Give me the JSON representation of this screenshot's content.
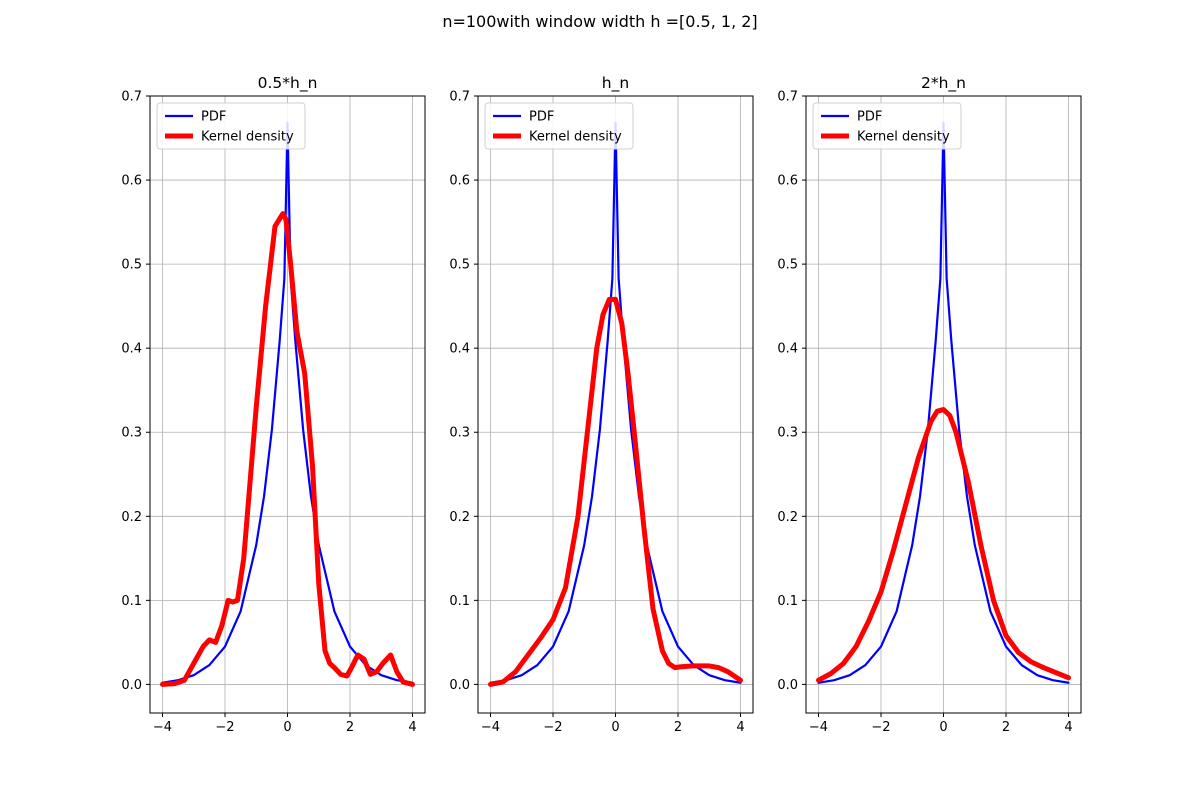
{
  "figure": {
    "suptitle": "n=100with window width h =[0.5, 1, 2]"
  },
  "colors": {
    "pdf": "#0000ff",
    "kde": "#ff0000",
    "grid": "#b0b0b0"
  },
  "chart_data": [
    {
      "type": "line",
      "title": "0.5*h_n",
      "xlabel": "",
      "ylabel": "",
      "xlim": [
        -4.4,
        4.4
      ],
      "ylim": [
        -0.034,
        0.7
      ],
      "xticks": [
        -4,
        -2,
        0,
        2,
        4
      ],
      "xtick_labels": [
        "−4",
        "−2",
        "0",
        "2",
        "4"
      ],
      "yticks": [
        0.0,
        0.1,
        0.2,
        0.3,
        0.4,
        0.5,
        0.6,
        0.7
      ],
      "ytick_labels": [
        "0.0",
        "0.1",
        "0.2",
        "0.3",
        "0.4",
        "0.5",
        "0.6",
        "0.7"
      ],
      "grid": true,
      "legend_position": "top-left",
      "series": [
        {
          "name": "PDF",
          "color": "#0000ff",
          "linewidth": "thin",
          "x": [
            -4,
            -3.5,
            -3,
            -2.5,
            -2,
            -1.5,
            -1,
            -0.75,
            -0.5,
            -0.25,
            -0.1,
            0,
            0.1,
            0.25,
            0.5,
            0.75,
            1,
            1.5,
            2,
            2.5,
            3,
            3.5,
            4
          ],
          "y": [
            0.002,
            0.005,
            0.011,
            0.023,
            0.045,
            0.087,
            0.166,
            0.224,
            0.303,
            0.409,
            0.483,
            0.668,
            0.483,
            0.409,
            0.303,
            0.224,
            0.166,
            0.087,
            0.045,
            0.023,
            0.011,
            0.005,
            0.002
          ]
        },
        {
          "name": "Kernel density",
          "color": "#ff0000",
          "linewidth": "thick",
          "x": [
            -4,
            -3.6,
            -3.3,
            -3,
            -2.7,
            -2.5,
            -2.3,
            -2.1,
            -1.9,
            -1.75,
            -1.6,
            -1.4,
            -1.2,
            -1,
            -0.7,
            -0.4,
            -0.15,
            -0.05,
            0.1,
            0.3,
            0.55,
            0.8,
            1,
            1.2,
            1.35,
            1.5,
            1.7,
            1.9,
            2.05,
            2.25,
            2.45,
            2.65,
            2.85,
            3.05,
            3.3,
            3.5,
            3.7,
            4
          ],
          "y": [
            0.0,
            0.001,
            0.005,
            0.025,
            0.045,
            0.053,
            0.05,
            0.07,
            0.1,
            0.098,
            0.1,
            0.15,
            0.24,
            0.33,
            0.45,
            0.545,
            0.56,
            0.553,
            0.5,
            0.42,
            0.37,
            0.26,
            0.12,
            0.04,
            0.025,
            0.02,
            0.012,
            0.01,
            0.02,
            0.035,
            0.03,
            0.012,
            0.015,
            0.025,
            0.035,
            0.015,
            0.003,
            0.0
          ]
        }
      ]
    },
    {
      "type": "line",
      "title": "h_n",
      "xlabel": "",
      "ylabel": "",
      "xlim": [
        -4.4,
        4.4
      ],
      "ylim": [
        -0.034,
        0.7
      ],
      "xticks": [
        -4,
        -2,
        0,
        2,
        4
      ],
      "xtick_labels": [
        "−4",
        "−2",
        "0",
        "2",
        "4"
      ],
      "yticks": [
        0.0,
        0.1,
        0.2,
        0.3,
        0.4,
        0.5,
        0.6,
        0.7
      ],
      "ytick_labels": [
        "0.0",
        "0.1",
        "0.2",
        "0.3",
        "0.4",
        "0.5",
        "0.6",
        "0.7"
      ],
      "grid": true,
      "legend_position": "top-left",
      "series": [
        {
          "name": "PDF",
          "color": "#0000ff",
          "linewidth": "thin",
          "x": [
            -4,
            -3.5,
            -3,
            -2.5,
            -2,
            -1.5,
            -1,
            -0.75,
            -0.5,
            -0.25,
            -0.1,
            0,
            0.1,
            0.25,
            0.5,
            0.75,
            1,
            1.5,
            2,
            2.5,
            3,
            3.5,
            4
          ],
          "y": [
            0.002,
            0.005,
            0.011,
            0.023,
            0.045,
            0.087,
            0.166,
            0.224,
            0.303,
            0.409,
            0.483,
            0.668,
            0.483,
            0.409,
            0.303,
            0.224,
            0.166,
            0.087,
            0.045,
            0.023,
            0.011,
            0.005,
            0.002
          ]
        },
        {
          "name": "Kernel density",
          "color": "#ff0000",
          "linewidth": "thick",
          "x": [
            -4,
            -3.6,
            -3.2,
            -2.8,
            -2.4,
            -2,
            -1.6,
            -1.2,
            -0.9,
            -0.6,
            -0.4,
            -0.2,
            0,
            0.2,
            0.4,
            0.6,
            0.9,
            1.2,
            1.5,
            1.7,
            1.9,
            2.1,
            2.5,
            3,
            3.3,
            3.6,
            4
          ],
          "y": [
            0.0,
            0.003,
            0.015,
            0.035,
            0.055,
            0.077,
            0.115,
            0.2,
            0.3,
            0.4,
            0.44,
            0.458,
            0.458,
            0.43,
            0.37,
            0.3,
            0.19,
            0.09,
            0.04,
            0.025,
            0.02,
            0.021,
            0.022,
            0.022,
            0.02,
            0.015,
            0.005
          ]
        }
      ]
    },
    {
      "type": "line",
      "title": "2*h_n",
      "xlabel": "",
      "ylabel": "",
      "xlim": [
        -4.4,
        4.4
      ],
      "ylim": [
        -0.034,
        0.7
      ],
      "xticks": [
        -4,
        -2,
        0,
        2,
        4
      ],
      "xtick_labels": [
        "−4",
        "−2",
        "0",
        "2",
        "4"
      ],
      "yticks": [
        0.0,
        0.1,
        0.2,
        0.3,
        0.4,
        0.5,
        0.6,
        0.7
      ],
      "ytick_labels": [
        "0.0",
        "0.1",
        "0.2",
        "0.3",
        "0.4",
        "0.5",
        "0.6",
        "0.7"
      ],
      "grid": true,
      "legend_position": "top-left",
      "series": [
        {
          "name": "PDF",
          "color": "#0000ff",
          "linewidth": "thin",
          "x": [
            -4,
            -3.5,
            -3,
            -2.5,
            -2,
            -1.5,
            -1,
            -0.75,
            -0.5,
            -0.25,
            -0.1,
            0,
            0.1,
            0.25,
            0.5,
            0.75,
            1,
            1.5,
            2,
            2.5,
            3,
            3.5,
            4
          ],
          "y": [
            0.002,
            0.005,
            0.011,
            0.023,
            0.045,
            0.087,
            0.166,
            0.224,
            0.303,
            0.409,
            0.483,
            0.668,
            0.483,
            0.409,
            0.303,
            0.224,
            0.166,
            0.087,
            0.045,
            0.023,
            0.011,
            0.005,
            0.002
          ]
        },
        {
          "name": "Kernel density",
          "color": "#ff0000",
          "linewidth": "thick",
          "x": [
            -4,
            -3.6,
            -3.2,
            -2.8,
            -2.4,
            -2,
            -1.6,
            -1.2,
            -0.8,
            -0.4,
            -0.2,
            0,
            0.2,
            0.4,
            0.8,
            1.2,
            1.6,
            2,
            2.4,
            2.8,
            3.2,
            3.6,
            4
          ],
          "y": [
            0.005,
            0.013,
            0.025,
            0.045,
            0.075,
            0.11,
            0.16,
            0.215,
            0.27,
            0.313,
            0.325,
            0.327,
            0.32,
            0.3,
            0.24,
            0.165,
            0.1,
            0.058,
            0.038,
            0.027,
            0.02,
            0.014,
            0.008
          ]
        }
      ]
    }
  ]
}
